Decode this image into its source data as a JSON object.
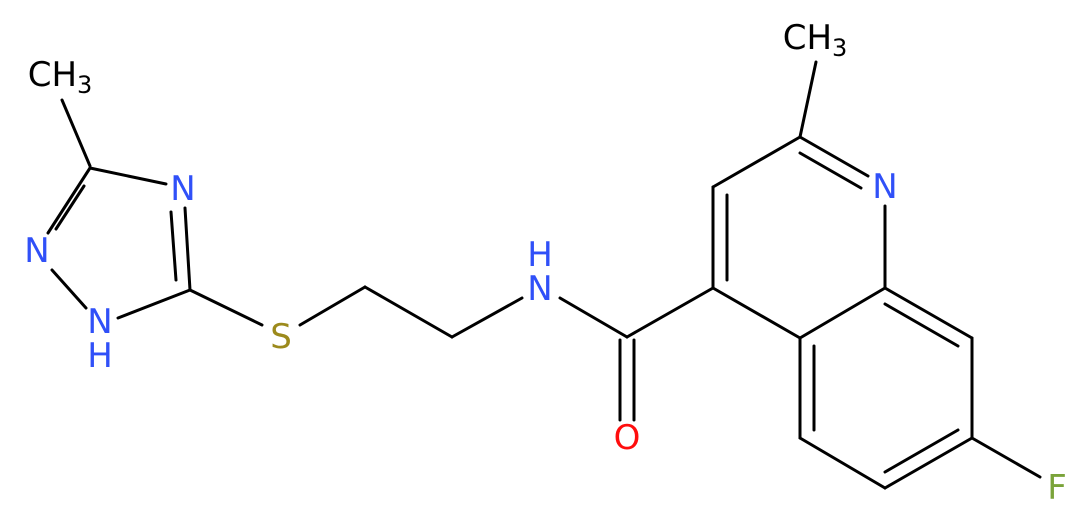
{
  "atoms": [
    {
      "label": "CH",
      "sub": "3"
    },
    {
      "label": "N"
    },
    {
      "label": "N"
    },
    {
      "label": "N"
    },
    {
      "label": "H"
    },
    {
      "label": "S"
    },
    {
      "label": "H"
    },
    {
      "label": "N"
    },
    {
      "label": "O"
    },
    {
      "label": "N"
    },
    {
      "label": "CH",
      "sub": "3"
    },
    {
      "label": "F"
    }
  ]
}
